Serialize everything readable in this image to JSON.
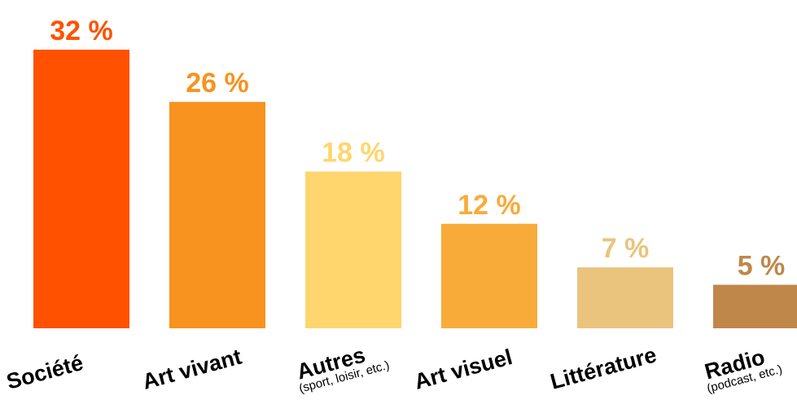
{
  "chart_data": {
    "type": "bar",
    "categories": [
      "Société",
      "Art vivant",
      "Autres",
      "Art visuel",
      "Littérature",
      "Radio"
    ],
    "sublabels": [
      null,
      null,
      "(sport, loisir, etc.)",
      null,
      null,
      "(podcast, etc.)"
    ],
    "values": [
      32,
      26,
      18,
      12,
      7,
      5
    ],
    "value_labels": [
      "32 %",
      "26 %",
      "18 %",
      "12 %",
      "7 %",
      "5 %"
    ],
    "colors": [
      "#ff5100",
      "#f7931e",
      "#ffd66e",
      "#f9ab3a",
      "#eac47d",
      "#c0874a"
    ]
  }
}
